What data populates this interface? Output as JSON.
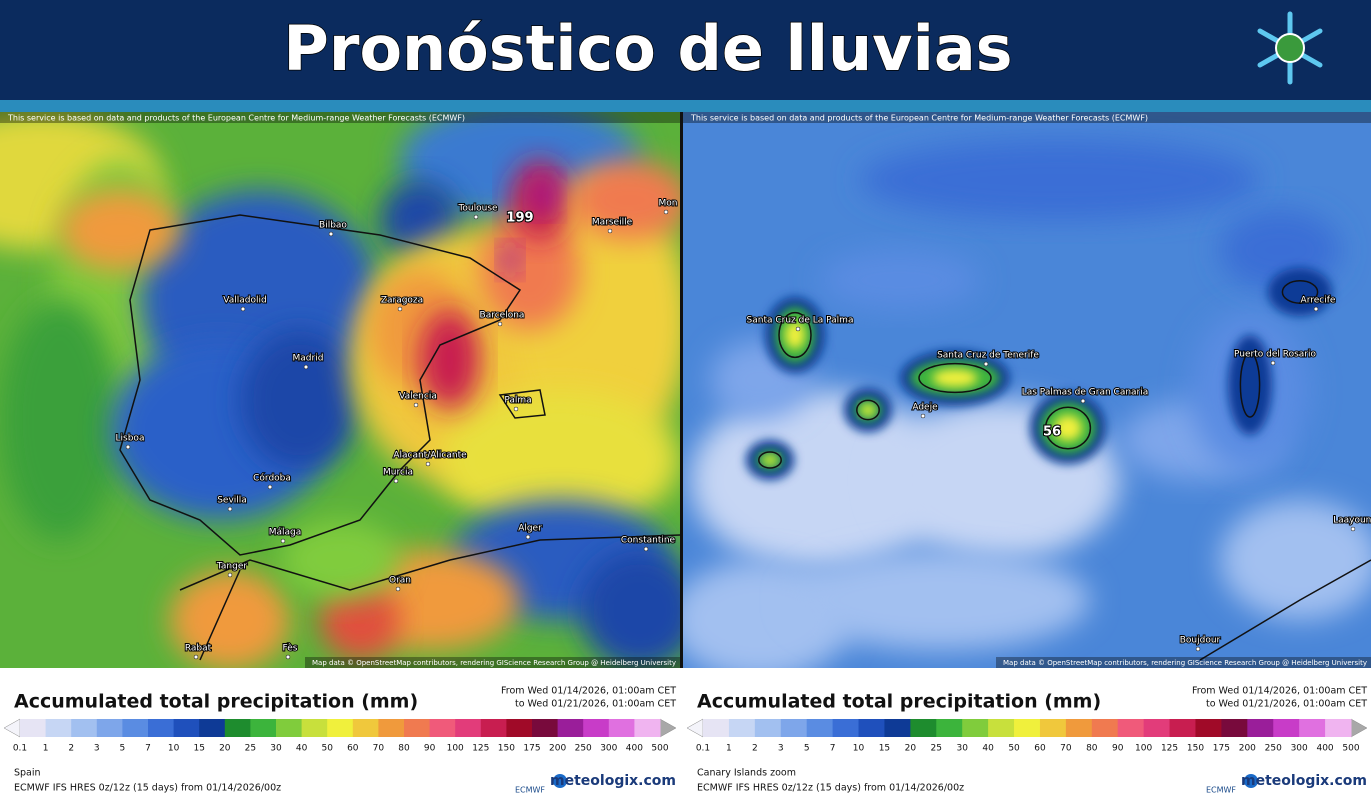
{
  "header": {
    "title": "Pronóstico de lluvias"
  },
  "legend_colors": [
    "#e6e4f4",
    "#c6d6f4",
    "#a2c0f0",
    "#7ea6ea",
    "#5a8ce2",
    "#3a6ed6",
    "#1f50bc",
    "#0e3a96",
    "#1e8c2e",
    "#3cb43c",
    "#80cc3c",
    "#c8e03c",
    "#f0f03c",
    "#f0c83c",
    "#f09a3c",
    "#f07a50",
    "#f05a7a",
    "#e23c7a",
    "#c81e50",
    "#a00a28",
    "#780a3c",
    "#9a1e9a",
    "#c83cc8",
    "#e070e0",
    "#f0b4f0"
  ],
  "panels": [
    {
      "attribution": "This service is based on data and products of the European Centre for Medium-range Weather Forecasts (ECMWF)",
      "map_credit": "Map data © OpenStreetMap contributors, rendering GIScience Research Group @ Heidelberg University",
      "places": [
        "Toulouse",
        "Bilbao",
        "Marseille",
        "Mon",
        "Valladolid",
        "Zaragoza",
        "Barcelona",
        "Madrid",
        "Valencia",
        "Palma",
        "Lisboa",
        "Alacant/Alicante",
        "Murcia",
        "Córdoba",
        "Sevilla",
        "Málaga",
        "Alger",
        "Constantine",
        "Tanger",
        "Oran",
        "Rabat",
        "Fès"
      ],
      "max_label": "199",
      "legend": {
        "title": "Accumulated total precipitation (mm)",
        "from": "From Wed 01/14/2026, 01:00am CET",
        "to": "to Wed 01/21/2026, 01:00am CET",
        "ticks": [
          0.1,
          1,
          2,
          3,
          5,
          7,
          10,
          15,
          20,
          25,
          30,
          40,
          50,
          60,
          70,
          80,
          90,
          100,
          125,
          150,
          175,
          200,
          250,
          300,
          400,
          500
        ]
      },
      "region": "Spain",
      "model": "ECMWF IFS HRES 0z/12z (15 days) from 01/14/2026/00z",
      "ecmwf": "ECMWF",
      "brand": "meteologix.com"
    },
    {
      "attribution": "This service is based on data and products of the European Centre for Medium-range Weather Forecasts (ECMWF)",
      "map_credit": "Map data © OpenStreetMap contributors, rendering GIScience Research Group @ Heidelberg University",
      "places": [
        "Santa Cruz de La Palma",
        "Santa Cruz de Tenerife",
        "Adeje",
        "Las Palmas de Gran Canaria",
        "Arrecife",
        "Puerto del Rosario",
        "Boujdour",
        "Laayoune"
      ],
      "max_label": "56",
      "legend": {
        "title": "Accumulated total precipitation (mm)",
        "from": "From Wed 01/14/2026, 01:00am CET",
        "to": "to Wed 01/21/2026, 01:00am CET",
        "ticks": [
          0.1,
          1,
          2,
          3,
          5,
          7,
          10,
          15,
          20,
          25,
          30,
          40,
          50,
          60,
          70,
          80,
          90,
          100,
          125,
          150,
          175,
          200,
          250,
          300,
          400,
          500
        ]
      },
      "region": "Canary Islands zoom",
      "model": "ECMWF IFS HRES 0z/12z (15 days) from 01/14/2026/00z",
      "ecmwf": "ECMWF",
      "brand": "meteologix.com"
    }
  ]
}
